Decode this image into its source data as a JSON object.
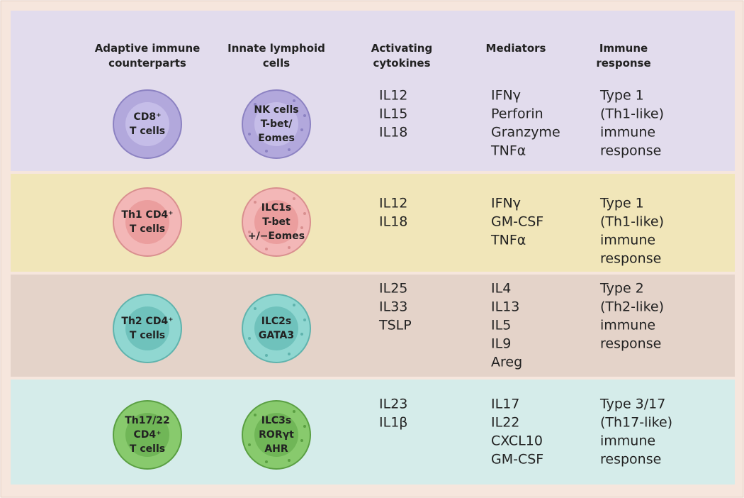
{
  "header": {
    "columns": [
      [
        "Adaptive immune",
        "counterparts"
      ],
      [
        "Innate lymphoid",
        "cells"
      ],
      [
        "Activating",
        "cytokines"
      ],
      [
        "Mediators"
      ],
      [
        "Immune",
        "response"
      ]
    ]
  },
  "rows": [
    {
      "adaptive": [
        "CD8⁺",
        "T cells"
      ],
      "ilc": [
        "NK cells",
        "T-bet/",
        "Eomes"
      ],
      "cytokines": [
        "IL12",
        "IL15",
        "IL18"
      ],
      "mediators": [
        "IFNγ",
        "Perforin",
        "Granzyme",
        "TNFα"
      ],
      "response": [
        "Type 1",
        "(Th1-like)",
        "immune",
        "response"
      ]
    },
    {
      "adaptive": [
        "Th1 CD4⁺",
        "T cells"
      ],
      "ilc": [
        "ILC1s",
        "T-bet",
        "+/−Eomes"
      ],
      "cytokines": [
        "IL12",
        "IL18"
      ],
      "mediators": [
        "IFNγ",
        "GM-CSF",
        "TNFα"
      ],
      "response": [
        "Type 1",
        "(Th1-like)",
        "immune",
        "response"
      ]
    },
    {
      "adaptive": [
        "Th2 CD4⁺",
        "T cells"
      ],
      "ilc": [
        "ILC2s",
        "GATA3"
      ],
      "cytokines": [
        "IL25",
        "IL33",
        "TSLP"
      ],
      "mediators": [
        "IL4",
        "IL13",
        "IL5",
        "IL9",
        "Areg"
      ],
      "response": [
        "Type 2",
        "(Th2-like)",
        "immune",
        "response"
      ]
    },
    {
      "adaptive": [
        "Th17/22",
        "CD4⁺",
        "T cells"
      ],
      "ilc": [
        "ILC3s",
        "RORγt",
        "AHR"
      ],
      "cytokines": [
        "IL23",
        "IL1β"
      ],
      "mediators": [
        "IL17",
        "IL22",
        "CXCL10",
        "GM-CSF"
      ],
      "response": [
        "Type 3/17",
        "(Th17-like)",
        "immune",
        "response"
      ]
    }
  ]
}
